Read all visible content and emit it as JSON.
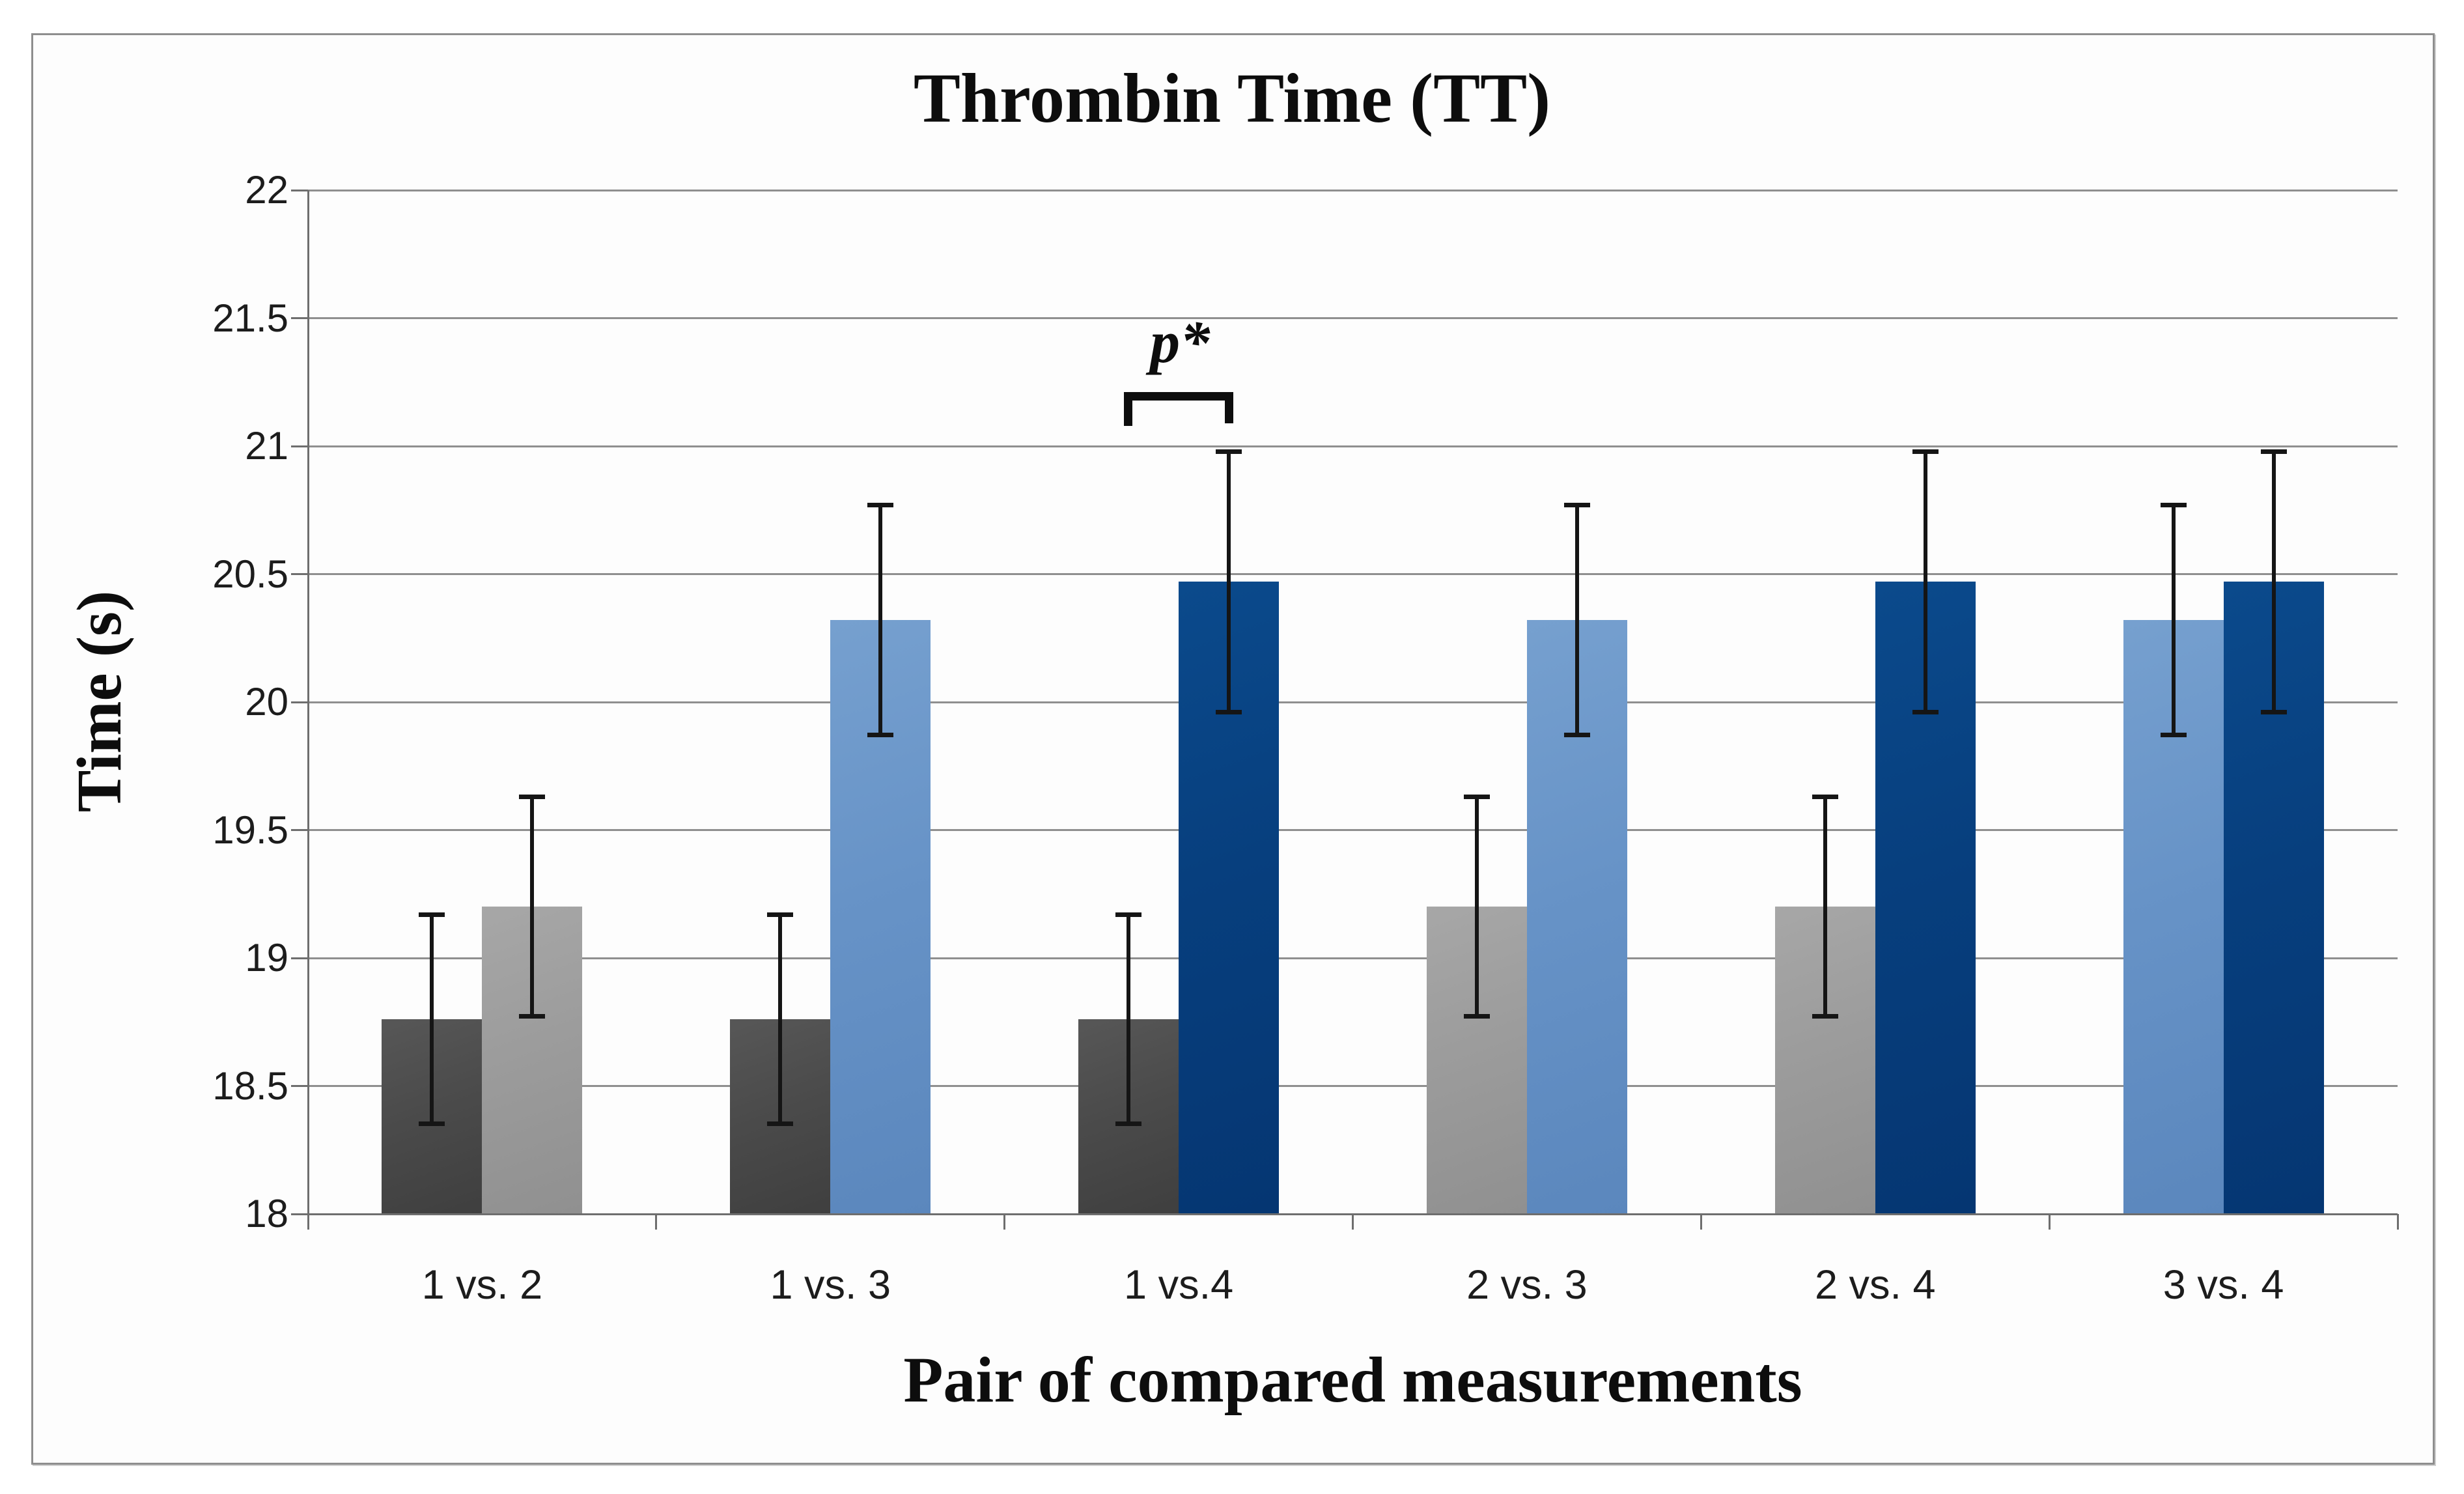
{
  "chart_data": {
    "type": "bar",
    "title": "Thrombin Time (TT)",
    "xlabel": "Pair of compared measurements",
    "ylabel": "Time (s)",
    "ylim": [
      18,
      22
    ],
    "ytick_step": 0.5,
    "ytick_labels": [
      "22",
      "21.5",
      "21",
      "20.5",
      "20",
      "19.5",
      "19",
      "18.5",
      "18"
    ],
    "categories": [
      "1 vs. 2",
      "1 vs. 3",
      "1 vs.4",
      "2 vs. 3",
      "2 vs. 4",
      "3 vs. 4"
    ],
    "grid": true,
    "legend": "none",
    "error_bars": true,
    "measurements": [
      {
        "id": "1",
        "value": 18.76,
        "error": 0.41,
        "color": "#4B4B4B",
        "color_light": "#575757",
        "color_dark": "#3F3F3F"
      },
      {
        "id": "2",
        "value": 19.2,
        "error": 0.43,
        "color": "#9C9C9C",
        "color_light": "#A7A7A7",
        "color_dark": "#909090"
      },
      {
        "id": "3",
        "value": 20.32,
        "error": 0.45,
        "color": "#6793C7",
        "color_light": "#76A0CF",
        "color_dark": "#5B87BD"
      },
      {
        "id": "4",
        "value": 20.47,
        "error": 0.51,
        "color": "#073F7E",
        "color_light": "#0B4A8C",
        "color_dark": "#053672"
      }
    ],
    "groups": [
      {
        "label": "1 vs. 2",
        "bars": [
          "1",
          "2"
        ]
      },
      {
        "label": "1 vs. 3",
        "bars": [
          "1",
          "3"
        ]
      },
      {
        "label": "1 vs.4",
        "bars": [
          "1",
          "4"
        ]
      },
      {
        "label": "2 vs. 3",
        "bars": [
          "2",
          "3"
        ]
      },
      {
        "label": "2 vs. 4",
        "bars": [
          "2",
          "4"
        ]
      },
      {
        "label": "3 vs. 4",
        "bars": [
          "3",
          "4"
        ]
      }
    ],
    "annotation": {
      "text": "p*",
      "group_label": "1 vs.4",
      "bracket_y_level": 21.21
    },
    "colors": {
      "gridline": "#8f8f8f",
      "axis": "#6e6e6e",
      "error_bar": "#151515",
      "frame_border": "#8e8e8e",
      "background": "#fdfdfd"
    }
  }
}
